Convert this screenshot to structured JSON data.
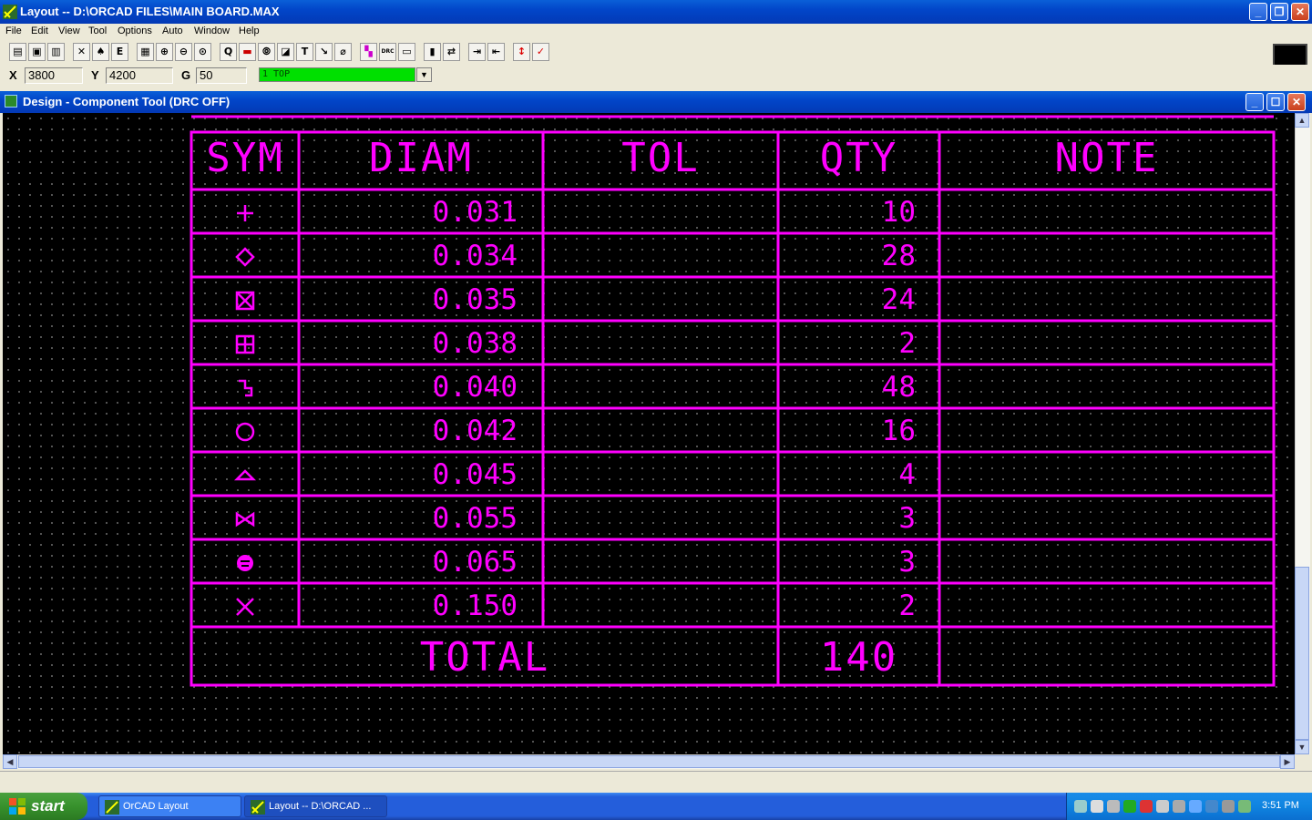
{
  "window": {
    "title": "Layout -- D:\\ORCAD FILES\\MAIN BOARD.MAX"
  },
  "menu": [
    "File",
    "Edit",
    "View",
    "Tool",
    "Options",
    "Auto",
    "Window",
    "Help"
  ],
  "toolbar_glyphs": [
    "▤",
    "▣",
    "▥",
    "✕",
    "♠",
    "E",
    "▦",
    "⊕",
    "⊖",
    "⊙",
    "Q",
    "▬",
    "⦾",
    "◪",
    "T",
    "↘",
    "⌀",
    "▚",
    "DRC",
    "▭",
    "▮",
    "⇄",
    "⇥",
    "⇤",
    "⇲",
    "↕",
    "✓"
  ],
  "coords": {
    "x_label": "X",
    "x_value": "3800",
    "y_label": "Y",
    "y_value": "4200",
    "g_label": "G",
    "g_value": "50",
    "layer": "1 TOP"
  },
  "child_window": {
    "title": "Design - Component Tool (DRC OFF)"
  },
  "drill_table": {
    "headers": [
      "SYM",
      "DIAM",
      "TOL",
      "QTY",
      "NOTE"
    ],
    "rows": [
      {
        "symbol": "plus",
        "diam": "0.031",
        "qty": "10"
      },
      {
        "symbol": "diamond",
        "diam": "0.034",
        "qty": "28"
      },
      {
        "symbol": "box-x",
        "diam": "0.035",
        "qty": "24"
      },
      {
        "symbol": "box-plus",
        "diam": "0.038",
        "qty": "2"
      },
      {
        "symbol": "s-hook",
        "diam": "0.040",
        "qty": "48"
      },
      {
        "symbol": "circle",
        "diam": "0.042",
        "qty": "16"
      },
      {
        "symbol": "triangle",
        "diam": "0.045",
        "qty": "4"
      },
      {
        "symbol": "bowtie",
        "diam": "0.055",
        "qty": "3"
      },
      {
        "symbol": "filled-circle",
        "diam": "0.065",
        "qty": "3"
      },
      {
        "symbol": "x",
        "diam": "0.150",
        "qty": "2"
      }
    ],
    "total_label": "TOTAL",
    "total_qty": "140",
    "color": "#ff00ff"
  },
  "taskbar": {
    "start_label": "start",
    "tasks": [
      "OrCAD Layout",
      "Layout -- D:\\ORCAD ..."
    ],
    "clock": "3:51 PM"
  }
}
